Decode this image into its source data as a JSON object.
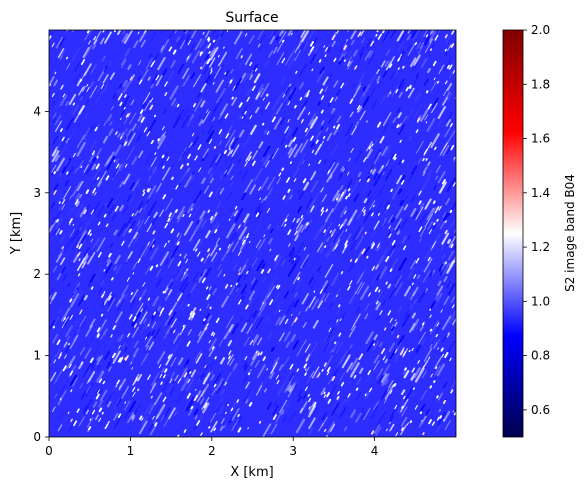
{
  "chart_data": {
    "type": "heatmap",
    "title": "Surface",
    "xlabel": "X [km]",
    "ylabel": "Y [km]",
    "xlim": [
      0,
      5
    ],
    "ylim": [
      0,
      5
    ],
    "x_ticks": [
      0,
      1,
      2,
      3,
      4
    ],
    "y_ticks": [
      0,
      1,
      2,
      3,
      4
    ],
    "grid": false,
    "field": {
      "description_values": "S2 band B04 reflectance-like values, mostly around 0.75-1.0 with bright specks up to ~1.4",
      "typical_value": 0.85,
      "speckle_max": 1.4,
      "streak_direction_degrees": 60
    },
    "colorbar": {
      "label": "S2 image band B04",
      "range": [
        0.5,
        2.0
      ],
      "ticks": [
        0.6,
        0.8,
        1.0,
        1.2,
        1.4,
        1.6,
        1.8,
        2.0
      ],
      "colormap": "seismic",
      "colors": [
        "#00004c",
        "#0000ff",
        "#ffffff",
        "#ff0000",
        "#800000"
      ]
    }
  }
}
